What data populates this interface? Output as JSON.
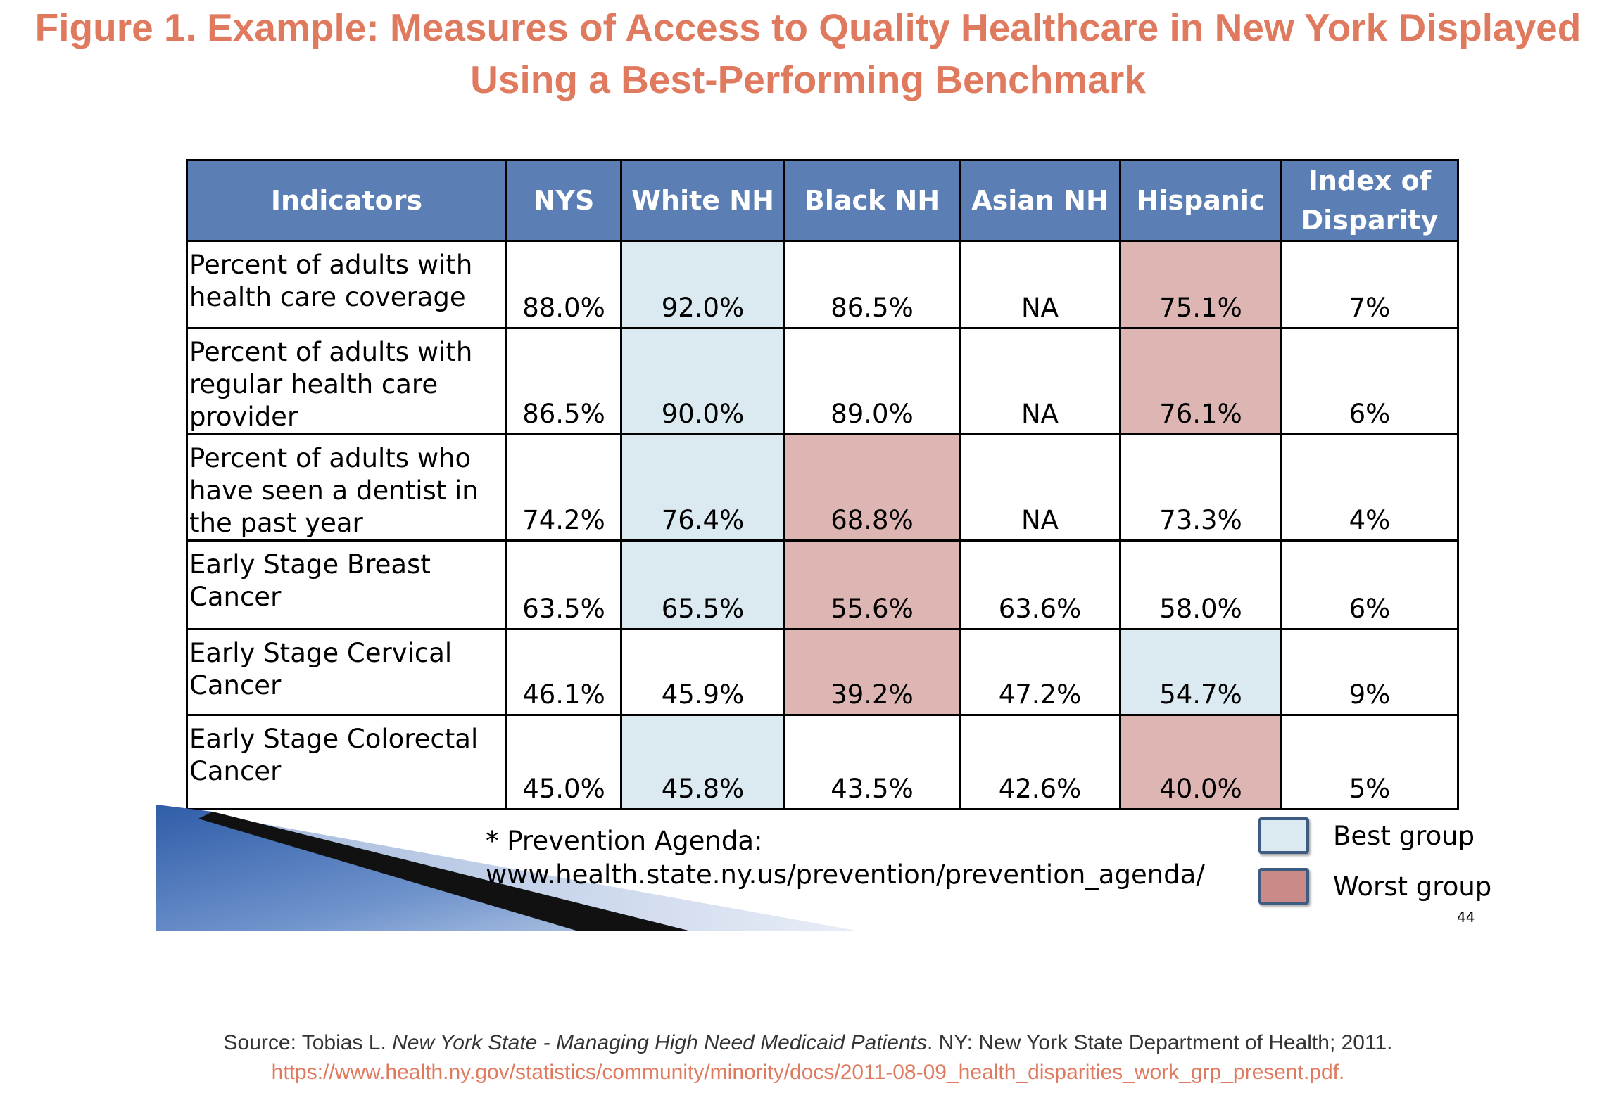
{
  "title": {
    "line1": "Figure 1. Example: Measures of Access to Quality Healthcare in New York Displayed",
    "line2": "Using a Best-Performing Benchmark"
  },
  "table": {
    "headers": [
      "Indicators",
      "NYS",
      "White NH",
      "Black NH",
      "Asian NH",
      "Hispanic",
      "Index of Disparity"
    ],
    "rows": [
      {
        "indicator": "Percent of adults with health care coverage",
        "nys": "88.0%",
        "white": "92.0%",
        "black": "86.5%",
        "asian": "NA",
        "hispanic": "75.1%",
        "index": "7%",
        "best": "white",
        "worst": "hispanic"
      },
      {
        "indicator": "Percent of adults with regular health care provider",
        "nys": "86.5%",
        "white": "90.0%",
        "black": "89.0%",
        "asian": "NA",
        "hispanic": "76.1%",
        "index": "6%",
        "best": "white",
        "worst": "hispanic"
      },
      {
        "indicator": "Percent of adults who have seen a dentist in the past year",
        "nys": "74.2%",
        "white": "76.4%",
        "black": "68.8%",
        "asian": "NA",
        "hispanic": "73.3%",
        "index": "4%",
        "best": "white",
        "worst": "black"
      },
      {
        "indicator": "Early Stage Breast Cancer",
        "nys": "63.5%",
        "white": "65.5%",
        "black": "55.6%",
        "asian": "63.6%",
        "hispanic": "58.0%",
        "index": "6%",
        "best": "white",
        "worst": "black"
      },
      {
        "indicator": "Early Stage Cervical Cancer",
        "nys": "46.1%",
        "white": "45.9%",
        "black": "39.2%",
        "asian": "47.2%",
        "hispanic": "54.7%",
        "index": "9%",
        "best": "hispanic",
        "worst": "black"
      },
      {
        "indicator": "Early Stage Colorectal Cancer",
        "nys": "45.0%",
        "white": "45.8%",
        "black": "43.5%",
        "asian": "42.6%",
        "hispanic": "40.0%",
        "index": "5%",
        "best": "white",
        "worst": "hispanic"
      }
    ]
  },
  "note": {
    "line1": "* Prevention Agenda:",
    "line2": "www.health.state.ny.us/prevention/prevention_agenda/"
  },
  "legend": {
    "best_label": "Best group",
    "worst_label": "Worst group"
  },
  "page_number": "44",
  "source": {
    "prefix": "Source: Tobias L. ",
    "title_italic": "New York State - Managing High Need Medicaid Patients",
    "suffix": ". NY: New York State Department of Health; 2011.",
    "url": "https://www.health.ny.gov/statistics/community/minority/docs/2011-08-09_health_disparities_work_grp_present.pdf."
  },
  "colors": {
    "title": "#E07A5F",
    "header_bg": "#5B7EB5",
    "best": "#DBE9F0",
    "worst": "#DDB6B3"
  }
}
